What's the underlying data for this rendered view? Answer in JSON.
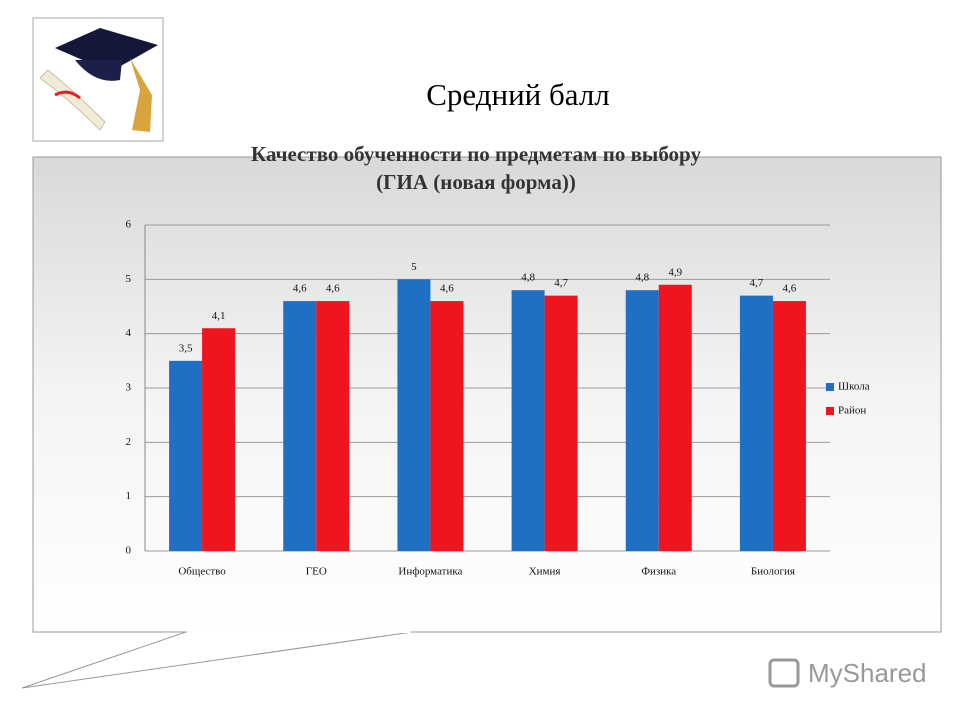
{
  "slide_title": "Средний балл",
  "watermark": "MyShared",
  "chart_data": {
    "type": "bar",
    "title": [
      "Качество обученности по предметам по выбору",
      "(ГИА (новая форма))"
    ],
    "categories": [
      "Общество",
      "ГЕО",
      "Информатика",
      "Химия",
      "Физика",
      "Биология"
    ],
    "series": [
      {
        "name": "Школа",
        "color": "#1f6fc5",
        "values": [
          3.5,
          4.6,
          5,
          4.8,
          4.8,
          4.7
        ],
        "value_labels": [
          "3,5",
          "4,6",
          "5",
          "4,8",
          "4,8",
          "4,7"
        ]
      },
      {
        "name": "Район",
        "color": "#f0141e",
        "values": [
          4.1,
          4.6,
          4.6,
          4.7,
          4.9,
          4.6
        ],
        "value_labels": [
          "4,1",
          "4,6",
          "4,6",
          "4,7",
          "4,9",
          "4,6"
        ]
      }
    ],
    "ylim": [
      0,
      6
    ],
    "yticks": [
      0,
      1,
      2,
      3,
      4,
      5,
      6
    ],
    "grid": true,
    "legend": "right"
  }
}
